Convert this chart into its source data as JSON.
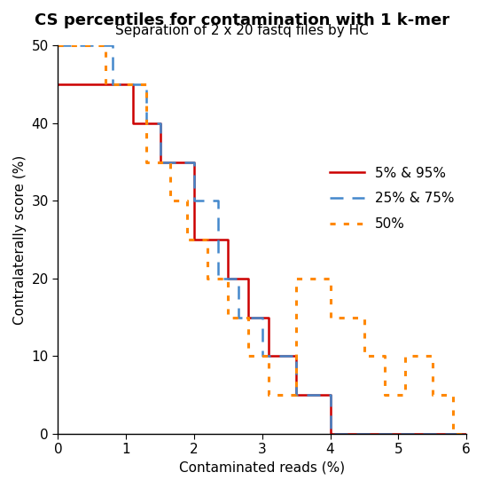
{
  "title": "CS percentiles for contamination with 1 k-mer",
  "subtitle": "Separation of 2 x 20 fastq files by HC",
  "xlabel": "Contaminated reads (%)",
  "ylabel": "Contralaterally score (%)",
  "xlim": [
    0,
    6
  ],
  "ylim": [
    0,
    50
  ],
  "xticks": [
    0,
    1,
    2,
    3,
    4,
    5,
    6
  ],
  "yticks": [
    0,
    10,
    20,
    30,
    40,
    50
  ],
  "background_color": "#ffffff",
  "line_5_95": {
    "label": "5% & 95%",
    "color": "#cc0000",
    "linestyle": "solid",
    "linewidth": 1.8,
    "x": [
      0,
      1.1,
      1.1,
      1.5,
      1.5,
      2.0,
      2.0,
      2.5,
      2.5,
      2.8,
      2.8,
      3.1,
      3.1,
      3.5,
      3.5,
      4.0,
      4.0,
      6.0
    ],
    "y": [
      45,
      45,
      40,
      40,
      35,
      35,
      25,
      25,
      20,
      20,
      15,
      15,
      10,
      10,
      5,
      5,
      0,
      0
    ]
  },
  "line_25_75": {
    "label": "25% & 75%",
    "color": "#4488cc",
    "linestyle": "dashed",
    "linewidth": 1.8,
    "x": [
      0,
      0.8,
      0.8,
      1.3,
      1.3,
      1.5,
      1.5,
      2.0,
      2.0,
      2.35,
      2.35,
      2.65,
      2.65,
      3.0,
      3.0,
      3.5,
      3.5,
      4.0,
      4.0,
      4.5,
      4.5,
      6.0
    ],
    "y": [
      50,
      50,
      45,
      45,
      40,
      40,
      35,
      35,
      30,
      30,
      20,
      20,
      15,
      15,
      10,
      10,
      5,
      5,
      0,
      0,
      0,
      0
    ]
  },
  "line_50": {
    "label": "50%",
    "color": "#ff8800",
    "linestyle": "dotted",
    "linewidth": 2.2,
    "x": [
      0,
      0.7,
      0.7,
      1.3,
      1.3,
      1.65,
      1.65,
      1.9,
      1.9,
      2.2,
      2.2,
      2.5,
      2.5,
      2.8,
      2.8,
      3.1,
      3.1,
      3.5,
      3.5,
      4.0,
      4.0,
      4.5,
      4.5,
      4.8,
      4.8,
      5.1,
      5.1,
      5.5,
      5.5,
      5.8,
      5.8,
      6.0
    ],
    "y": [
      50,
      50,
      45,
      45,
      35,
      35,
      30,
      30,
      25,
      25,
      20,
      20,
      15,
      15,
      10,
      10,
      5,
      5,
      20,
      20,
      15,
      15,
      10,
      10,
      5,
      5,
      10,
      10,
      5,
      5,
      0,
      0
    ]
  },
  "title_fontsize": 13,
  "subtitle_fontsize": 11,
  "axis_fontsize": 11,
  "tick_fontsize": 11,
  "legend_fontsize": 11
}
